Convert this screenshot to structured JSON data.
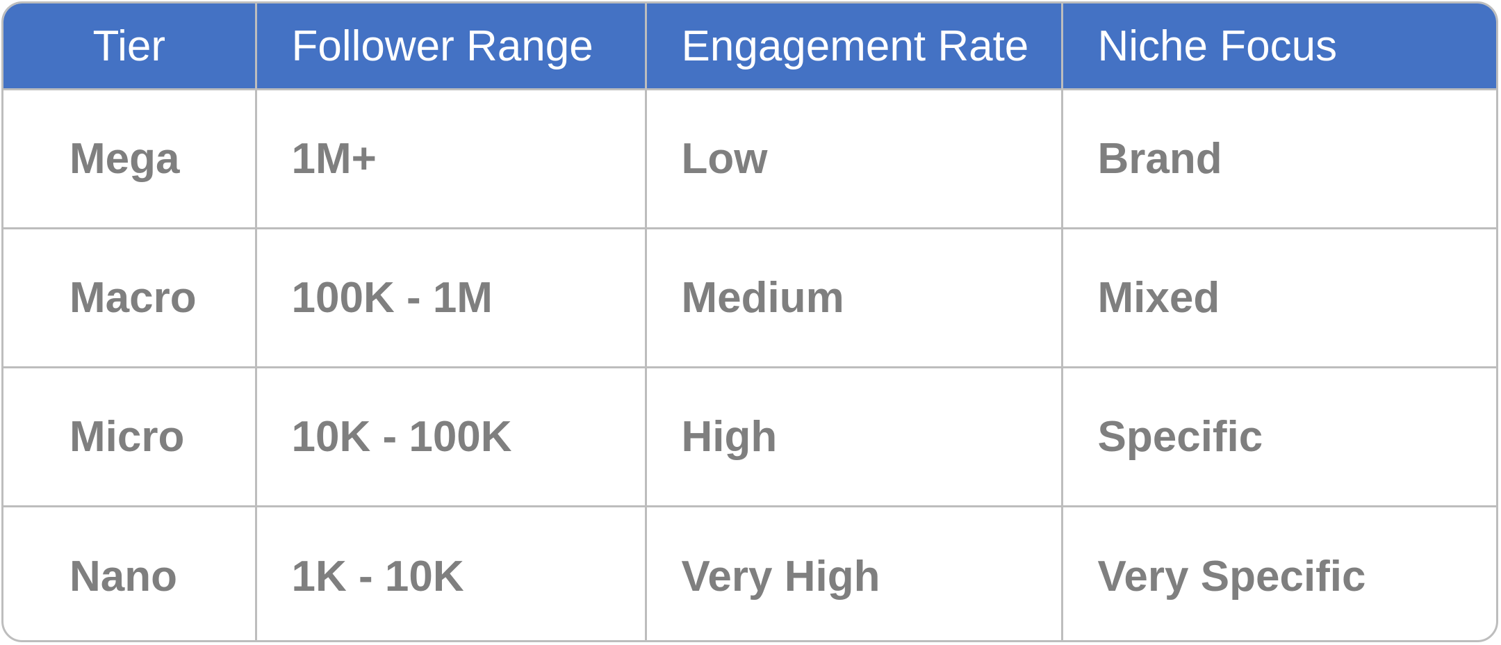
{
  "table": {
    "headers": [
      "Tier",
      "Follower Range",
      "Engagement Rate",
      "Niche Focus"
    ],
    "rows": [
      [
        "Mega",
        "1M+",
        "Low",
        "Brand"
      ],
      [
        "Macro",
        "100K - 1M",
        "Medium",
        "Mixed"
      ],
      [
        "Micro",
        "10K - 100K",
        "High",
        "Specific"
      ],
      [
        "Nano",
        "1K - 10K",
        "Very High",
        "Very Specific"
      ]
    ]
  },
  "colors": {
    "header_bg": "#4472c4",
    "header_text": "#ffffff",
    "cell_text": "#7f7f7f",
    "grid": "#bdbdbd"
  }
}
